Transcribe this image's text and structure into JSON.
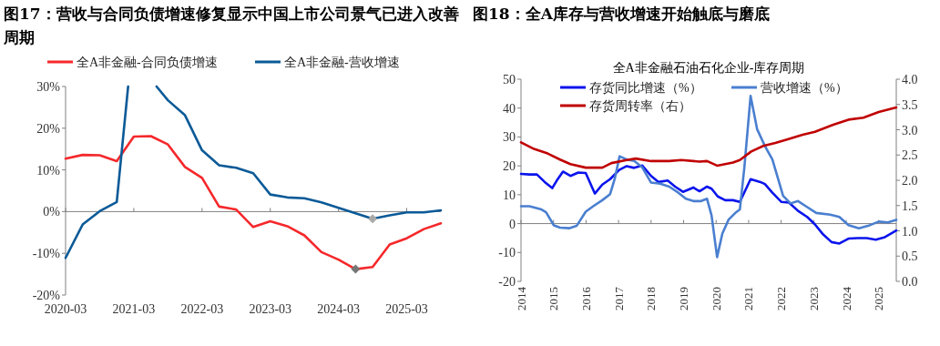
{
  "chart_data": [
    {
      "type": "line",
      "title": "图17：营收与合同负债增速修复显示中国上市公司景气已进入改善周期",
      "legend": "top",
      "x": [
        "2020-03",
        "2020-06",
        "2020-09",
        "2020-12",
        "2021-03",
        "2021-06",
        "2021-09",
        "2021-12",
        "2022-03",
        "2022-06",
        "2022-09",
        "2022-12",
        "2023-03",
        "2023-06",
        "2023-09",
        "2023-12",
        "2024-03",
        "2024-06",
        "2024-09",
        "2024-12",
        "2025-03",
        "2025-06",
        "2025-09"
      ],
      "xlim": [
        "2020-03",
        "2025-09"
      ],
      "xticks": [
        "2020-03",
        "2021-03",
        "2022-03",
        "2023-03",
        "2024-03",
        "2025-03"
      ],
      "ylim": [
        -20,
        30
      ],
      "yticks": [
        {
          "value": -20,
          "label": "-20%"
        },
        {
          "value": -10,
          "label": "-10%"
        },
        {
          "value": 0,
          "label": "0%"
        },
        {
          "value": 10,
          "label": "10%"
        },
        {
          "value": 20,
          "label": "20%"
        },
        {
          "value": 30,
          "label": "30%"
        }
      ],
      "series": [
        {
          "name": "全A非金融-合同负债增速",
          "color": "#f5282b",
          "values": [
            12.7,
            13.6,
            13.5,
            12.1,
            18.0,
            18.1,
            16.1,
            10.7,
            8.1,
            1.2,
            0.5,
            -3.7,
            -2.3,
            -3.5,
            -5.7,
            -9.7,
            -11.5,
            -13.8,
            -13.3,
            -7.9,
            -6.4,
            -4.2,
            -2.8
          ]
        },
        {
          "name": "全A非金融-营收增速",
          "color": "#0b5a97",
          "x": [
            "2020-03",
            "2020-06",
            "2020-09",
            "2020-12",
            "2021-02",
            "2021-03",
            "2021-06",
            "2021-07",
            "2021-09",
            "2021-12",
            "2022-03",
            "2022-06",
            "2022-09",
            "2022-12",
            "2023-03",
            "2023-06",
            "2023-09",
            "2023-12",
            "2024-03",
            "2024-06",
            "2024-09",
            "2024-12",
            "2025-03",
            "2025-06",
            "2025-09"
          ],
          "values": [
            -11.1,
            -3.1,
            0.1,
            2.3,
            30,
            null,
            null,
            30,
            26.7,
            23.1,
            14.7,
            11.1,
            10.5,
            9.2,
            4.1,
            3.4,
            3.2,
            2.2,
            0.9,
            -0.4,
            -1.7,
            -0.9,
            -0.2,
            -0.2,
            0.3
          ]
        },
        {
          "type": "scatter",
          "marker": "diamond",
          "color": "#767676",
          "x": [
            "2024-06"
          ],
          "values": [
            -13.8
          ]
        },
        {
          "type": "scatter",
          "marker": "diamond",
          "color": "#a9a9a9",
          "x": [
            "2024-09"
          ],
          "values": [
            -1.7
          ]
        }
      ]
    },
    {
      "type": "line",
      "title": "图18：全A库存与营收增速开始触底与磨底",
      "subtitle": "全A非金融石油石化企业-库存周期",
      "legend": "top",
      "xlim": [
        2014,
        2025.54
      ],
      "xticks": [
        2014,
        2015,
        2016,
        2017,
        2018,
        2019,
        2020,
        2021,
        2022,
        2023,
        2024,
        2025
      ],
      "ylim": [
        -20,
        50
      ],
      "yticks": [
        -20,
        -10,
        0,
        10,
        20,
        30,
        40,
        50
      ],
      "y2lim": [
        0,
        4
      ],
      "y2ticks": [
        {
          "value": 0,
          "label": "0.0"
        },
        {
          "value": 0.5,
          "label": "0.5"
        },
        {
          "value": 1,
          "label": "1.0"
        },
        {
          "value": 1.5,
          "label": "1.5"
        },
        {
          "value": 2,
          "label": "2.0"
        },
        {
          "value": 2.5,
          "label": "2.5"
        },
        {
          "value": 3,
          "label": "3.0"
        },
        {
          "value": 3.5,
          "label": "3.5"
        },
        {
          "value": 4,
          "label": "4.0"
        }
      ],
      "series": [
        {
          "name": "存货同比增速（%）",
          "color": "#0a14ec",
          "x": [
            2014.0,
            2014.26,
            2014.49,
            2014.73,
            2014.96,
            2015.1,
            2015.29,
            2015.52,
            2015.76,
            2015.99,
            2016.27,
            2016.5,
            2016.74,
            2017.02,
            2017.25,
            2017.48,
            2017.73,
            2018.0,
            2018.23,
            2018.51,
            2018.74,
            2018.98,
            2019.3,
            2019.49,
            2019.72,
            2019.86,
            2020.05,
            2020.28,
            2020.52,
            2020.73,
            2021.06,
            2021.36,
            2021.5,
            2021.73,
            2022.01,
            2022.24,
            2022.52,
            2022.8,
            2023.04,
            2023.27,
            2023.55,
            2023.79,
            2024.07,
            2024.35,
            2024.63,
            2024.91,
            2025.19,
            2025.54
          ],
          "values": [
            17.2,
            17.0,
            17.0,
            14.4,
            12.3,
            14.9,
            18.0,
            16.5,
            17.7,
            17.5,
            10.4,
            13.5,
            15.4,
            18.6,
            19.9,
            19.3,
            20.1,
            16.5,
            14.4,
            14.9,
            12.8,
            11.0,
            12.5,
            11.2,
            12.8,
            12.1,
            9.4,
            8.1,
            8.1,
            7.5,
            15.4,
            14.4,
            13.7,
            10.7,
            7.5,
            7.3,
            4.4,
            2.3,
            -0.3,
            -3.5,
            -6.4,
            -6.9,
            -5.2,
            -5.0,
            -5.0,
            -5.6,
            -4.7,
            -2.4
          ]
        },
        {
          "name": "营收增速（%）",
          "color": "#4a7fd0",
          "x": [
            2014.0,
            2014.26,
            2014.63,
            2014.77,
            2015.01,
            2015.2,
            2015.48,
            2015.71,
            2015.99,
            2016.22,
            2016.5,
            2016.74,
            2016.88,
            2017.03,
            2017.25,
            2017.48,
            2017.72,
            2018.0,
            2018.28,
            2018.56,
            2018.84,
            2019.07,
            2019.3,
            2019.54,
            2019.72,
            2019.86,
            2020.03,
            2020.19,
            2020.38,
            2020.61,
            2020.73,
            2020.87,
            2021.06,
            2021.26,
            2021.5,
            2021.73,
            2022.06,
            2022.29,
            2022.52,
            2022.76,
            2023.08,
            2023.51,
            2023.79,
            2024.07,
            2024.39,
            2024.67,
            2025.0,
            2025.28,
            2025.54
          ],
          "values": [
            6.0,
            6.0,
            4.9,
            3.9,
            -0.6,
            -1.4,
            -1.6,
            -0.8,
            4.1,
            6.0,
            8.1,
            10.2,
            15.4,
            23.3,
            22.2,
            21.7,
            19.6,
            14.2,
            13.8,
            12.8,
            10.7,
            8.6,
            7.8,
            7.8,
            8.6,
            2.8,
            -11.6,
            -3.5,
            1.3,
            3.9,
            4.9,
            19.6,
            44.2,
            32.7,
            26.9,
            22.2,
            9.6,
            7.0,
            7.8,
            6.0,
            3.7,
            3.1,
            2.3,
            -0.5,
            -1.6,
            -0.8,
            0.7,
            0.4,
            1.3
          ]
        },
        {
          "name": "存货周转率（右）",
          "color": "#c00000",
          "axis": "y2",
          "x": [
            2014.0,
            2014.4,
            2014.82,
            2015.2,
            2015.52,
            2015.99,
            2016.5,
            2016.78,
            2017.25,
            2017.53,
            2018.0,
            2018.56,
            2018.93,
            2019.49,
            2019.72,
            2020.03,
            2020.52,
            2020.73,
            2021.08,
            2021.45,
            2021.82,
            2022.2,
            2022.66,
            2023.04,
            2023.6,
            2024.07,
            2024.53,
            2025.0,
            2025.54
          ],
          "values": [
            2.75,
            2.62,
            2.53,
            2.41,
            2.32,
            2.25,
            2.25,
            2.34,
            2.4,
            2.43,
            2.38,
            2.38,
            2.4,
            2.37,
            2.38,
            2.29,
            2.35,
            2.4,
            2.57,
            2.68,
            2.74,
            2.81,
            2.9,
            2.96,
            3.1,
            3.2,
            3.24,
            3.35,
            3.44
          ]
        }
      ]
    }
  ]
}
